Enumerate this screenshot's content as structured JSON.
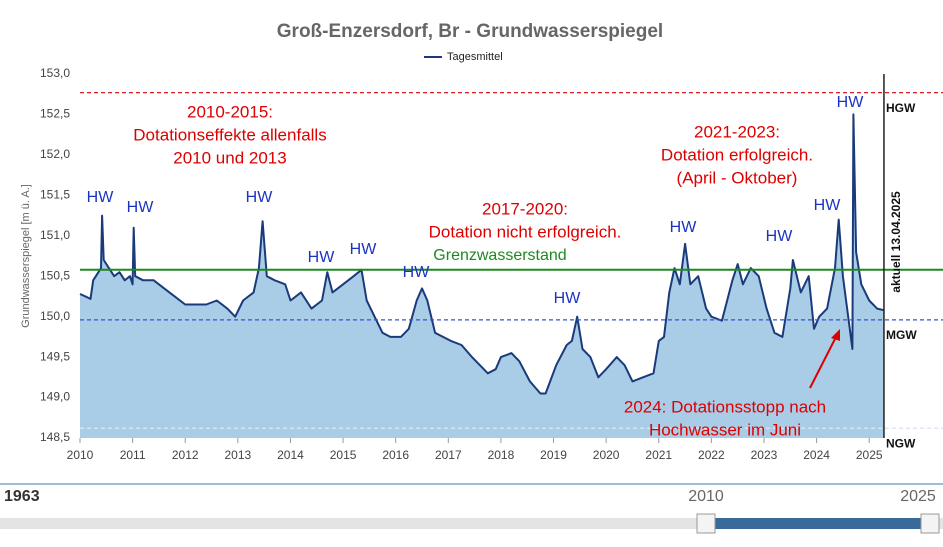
{
  "chart_data": {
    "type": "area",
    "title": "Groß-Enzersdorf, Br - Grundwasserspiegel",
    "y_label": "Grundwasserspiegel [m ü. A.]",
    "x": [
      2010.0,
      2010.1,
      2010.2,
      2010.25,
      2010.35,
      2010.4,
      2010.42,
      2010.45,
      2010.55,
      2010.65,
      2010.75,
      2010.85,
      2010.95,
      2011.0,
      2011.02,
      2011.05,
      2011.2,
      2011.4,
      2011.6,
      2011.8,
      2012.0,
      2012.2,
      2012.4,
      2012.6,
      2012.8,
      2012.95,
      2013.1,
      2013.3,
      2013.4,
      2013.47,
      2013.55,
      2013.7,
      2013.9,
      2014.0,
      2014.2,
      2014.4,
      2014.6,
      2014.7,
      2014.8,
      2015.0,
      2015.2,
      2015.35,
      2015.45,
      2015.6,
      2015.75,
      2015.9,
      2016.1,
      2016.25,
      2016.4,
      2016.5,
      2016.6,
      2016.75,
      2016.9,
      2017.05,
      2017.25,
      2017.45,
      2017.6,
      2017.75,
      2017.9,
      2018.0,
      2018.2,
      2018.35,
      2018.55,
      2018.75,
      2018.85,
      2019.05,
      2019.25,
      2019.35,
      2019.45,
      2019.55,
      2019.7,
      2019.85,
      2020.0,
      2020.2,
      2020.35,
      2020.5,
      2020.7,
      2020.9,
      2021.0,
      2021.1,
      2021.2,
      2021.3,
      2021.4,
      2021.5,
      2021.6,
      2021.75,
      2021.9,
      2022.0,
      2022.2,
      2022.4,
      2022.5,
      2022.6,
      2022.75,
      2022.9,
      2023.05,
      2023.2,
      2023.35,
      2023.5,
      2023.55,
      2023.7,
      2023.85,
      2023.95,
      2024.05,
      2024.2,
      2024.35,
      2024.42,
      2024.5,
      2024.6,
      2024.68,
      2024.7,
      2024.75,
      2024.85,
      2025.0,
      2025.15,
      2025.28
    ],
    "series": [
      {
        "name": "Tagesmittel",
        "color": "#1a3a7a",
        "fill": "#a9cde6",
        "values": [
          150.28,
          150.25,
          150.22,
          150.45,
          150.55,
          150.6,
          151.25,
          150.7,
          150.6,
          150.5,
          150.55,
          150.45,
          150.5,
          150.4,
          151.1,
          150.5,
          150.45,
          150.45,
          150.35,
          150.25,
          150.15,
          150.15,
          150.15,
          150.2,
          150.1,
          150.0,
          150.2,
          150.3,
          150.6,
          151.18,
          150.5,
          150.45,
          150.4,
          150.2,
          150.3,
          150.1,
          150.2,
          150.55,
          150.3,
          150.4,
          150.5,
          150.58,
          150.2,
          150.0,
          149.8,
          149.75,
          149.75,
          149.85,
          150.2,
          150.35,
          150.2,
          149.8,
          149.75,
          149.7,
          149.65,
          149.5,
          149.4,
          149.3,
          149.35,
          149.5,
          149.55,
          149.45,
          149.2,
          149.05,
          149.05,
          149.4,
          149.65,
          149.7,
          150.0,
          149.6,
          149.5,
          149.25,
          149.35,
          149.5,
          149.4,
          149.2,
          149.25,
          149.3,
          149.7,
          149.75,
          150.3,
          150.6,
          150.4,
          150.9,
          150.4,
          150.5,
          150.1,
          150.0,
          149.95,
          150.45,
          150.65,
          150.4,
          150.6,
          150.5,
          150.1,
          149.8,
          149.75,
          150.35,
          150.7,
          150.3,
          150.5,
          149.85,
          150.0,
          150.1,
          150.6,
          151.2,
          150.5,
          150.0,
          149.6,
          152.5,
          150.8,
          150.4,
          150.2,
          150.1,
          150.08
        ]
      }
    ],
    "xlim": [
      2010,
      2025.3
    ],
    "xticks": [
      2010,
      2011,
      2012,
      2013,
      2014,
      2015,
      2016,
      2017,
      2018,
      2019,
      2020,
      2021,
      2022,
      2023,
      2024,
      2025
    ],
    "ylim": [
      148.5,
      153.0
    ],
    "yticks": [
      {
        "value": 148.5,
        "label": "148,5"
      },
      {
        "value": 149.0,
        "label": "149,0"
      },
      {
        "value": 149.5,
        "label": "149,5"
      },
      {
        "value": 150.0,
        "label": "150,0"
      },
      {
        "value": 150.5,
        "label": "150,5"
      },
      {
        "value": 151.0,
        "label": "151,0"
      },
      {
        "value": 151.5,
        "label": "151,5"
      },
      {
        "value": 152.0,
        "label": "152,0"
      },
      {
        "value": 152.5,
        "label": "152,5"
      },
      {
        "value": 153.0,
        "label": "153,0"
      }
    ],
    "grid": false,
    "legend": "top",
    "reference_lines": [
      {
        "label": "HGW",
        "value": 152.77,
        "color": "#d42020"
      },
      {
        "label": "MGW",
        "value": 149.96,
        "color": "#3355cc"
      },
      {
        "label": "NGW",
        "value": 148.62,
        "color": "#dde4f4"
      },
      {
        "label": "Grenzwasserstand",
        "value": 150.58,
        "color": "#1e8a1e"
      }
    ],
    "marker": {
      "label": "aktuell 13.04.2025",
      "x": 2025.28
    },
    "annotations": [
      [
        "2010-2015:",
        "Dotationseffekte allenfalls",
        "2010 und 2013"
      ],
      [
        "2017-2020:",
        "Dotation nicht erfolgreich."
      ],
      [
        "2021-2023:",
        "Dotation erfolgreich.",
        "(April - Oktober)"
      ],
      [
        "2024: Dotationsstopp nach",
        "Hochwasser im Juni"
      ]
    ],
    "hw_labels": [
      "HW",
      "HW",
      "HW",
      "HW",
      "HW",
      "HW",
      "HW",
      "HW",
      "HW",
      "HW",
      "HW"
    ]
  },
  "navigator": {
    "labels": [
      "1963",
      "2010",
      "2025"
    ]
  }
}
